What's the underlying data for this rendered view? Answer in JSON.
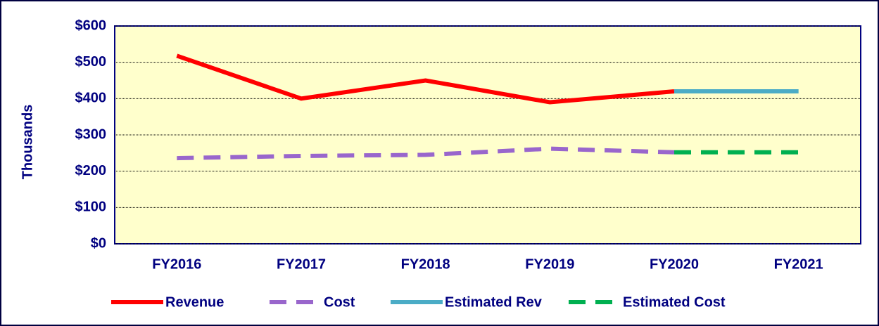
{
  "chart_data": {
    "type": "line",
    "y_label": "Thousands",
    "categories": [
      "FY2016",
      "FY2017",
      "FY2018",
      "FY2019",
      "FY2020",
      "FY2021"
    ],
    "series": [
      {
        "name": "Revenue",
        "color": "#ff0000",
        "dashed": false,
        "values": [
          518,
          400,
          450,
          390,
          420,
          null
        ]
      },
      {
        "name": "Cost",
        "color": "#9966cc",
        "dashed": true,
        "values": [
          236,
          242,
          245,
          262,
          252,
          null
        ]
      },
      {
        "name": "Estimated Rev",
        "color": "#4bacc6",
        "dashed": false,
        "values": [
          null,
          null,
          null,
          null,
          420,
          420
        ]
      },
      {
        "name": "Estimated Cost",
        "color": "#00b050",
        "dashed": true,
        "values": [
          null,
          null,
          null,
          null,
          252,
          252
        ]
      }
    ],
    "ylim": [
      0,
      600
    ],
    "yticks": [
      {
        "value": 0,
        "label": "$0"
      },
      {
        "value": 100,
        "label": "$100"
      },
      {
        "value": 200,
        "label": "$200"
      },
      {
        "value": 300,
        "label": "$300"
      },
      {
        "value": 400,
        "label": "$400"
      },
      {
        "value": 500,
        "label": "$500"
      },
      {
        "value": 600,
        "label": "$600"
      }
    ],
    "grid": true,
    "legend": "bottom"
  }
}
